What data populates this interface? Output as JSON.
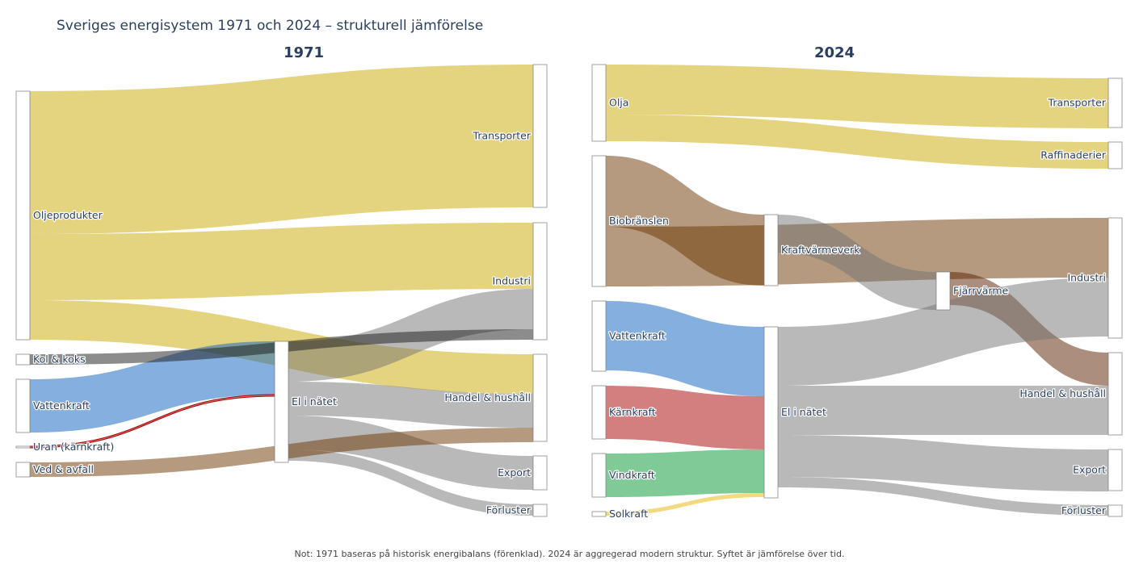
{
  "title": "Sveriges energisystem 1971 och 2024 – strukturell jämförelse",
  "note": "Not: 1971 baseras på historisk energibalans (förenklad). 2024 är aggregerad modern struktur. Syftet är jämförelse över tid.",
  "colors": {
    "oil": "#c9a800",
    "grey": "#737373",
    "dark_grey": "#1a1a1a",
    "blue": "#0a5fbf",
    "red": "#a80000",
    "green": "#00962d",
    "brown": "#6b3500",
    "dark_brown": "#5a1d00",
    "gold": "#e8b400"
  },
  "panels": [
    {
      "title": "1971",
      "nodes": [
        "Oljeprodukter",
        "Kol & koks",
        "Vattenkraft",
        "Uran (kärnkraft)",
        "Ved & avfall",
        "El i nätet",
        "Transporter",
        "Industri",
        "Handel & hushåll",
        "Export",
        "Förluster"
      ],
      "links": [
        {
          "source": 0,
          "target": 6,
          "value": 177,
          "color": "oil"
        },
        {
          "source": 0,
          "target": 7,
          "value": 82,
          "color": "oil"
        },
        {
          "source": 0,
          "target": 8,
          "value": 49,
          "color": "oil"
        },
        {
          "source": 2,
          "target": 5,
          "value": 66,
          "color": "blue"
        },
        {
          "source": 3,
          "target": 5,
          "value": 2,
          "color": "red"
        },
        {
          "source": 5,
          "target": 7,
          "value": 50,
          "color": "grey"
        },
        {
          "source": 5,
          "target": 8,
          "value": 42,
          "color": "grey"
        },
        {
          "source": 5,
          "target": 9,
          "value": 42,
          "color": "grey"
        },
        {
          "source": 5,
          "target": 10,
          "value": 14,
          "color": "grey"
        },
        {
          "source": 1,
          "target": 7,
          "value": 13,
          "color": "dark_grey"
        },
        {
          "source": 4,
          "target": 8,
          "value": 18,
          "color": "brown"
        }
      ]
    },
    {
      "title": "2024",
      "nodes": [
        "Olja",
        "Biobränslen",
        "Vattenkraft",
        "Kärnkraft",
        "Vindkraft",
        "Solkraft",
        "Kraftvärmeverk",
        "El i nätet",
        "Fjärrvärme",
        "Transporter",
        "Raffinaderier",
        "Industri",
        "Handel & hushåll",
        "Export",
        "Förluster"
      ],
      "links": [
        {
          "source": 0,
          "target": 9,
          "value": 62,
          "color": "oil"
        },
        {
          "source": 0,
          "target": 10,
          "value": 33,
          "color": "oil"
        },
        {
          "source": 1,
          "target": 6,
          "value": 88,
          "color": "brown"
        },
        {
          "source": 1,
          "target": 11,
          "value": 74,
          "color": "brown"
        },
        {
          "source": 6,
          "target": 8,
          "value": 47,
          "color": "grey"
        },
        {
          "source": 8,
          "target": 12,
          "value": 41,
          "color": "dark_brown"
        },
        {
          "source": 2,
          "target": 7,
          "value": 86,
          "color": "blue"
        },
        {
          "source": 3,
          "target": 7,
          "value": 66,
          "color": "red"
        },
        {
          "source": 4,
          "target": 7,
          "value": 54,
          "color": "green"
        },
        {
          "source": 5,
          "target": 7,
          "value": 5,
          "color": "gold"
        },
        {
          "source": 7,
          "target": 11,
          "value": 73,
          "color": "grey"
        },
        {
          "source": 7,
          "target": 12,
          "value": 61,
          "color": "grey"
        },
        {
          "source": 7,
          "target": 13,
          "value": 52,
          "color": "grey"
        },
        {
          "source": 7,
          "target": 14,
          "value": 13,
          "color": "grey"
        }
      ]
    }
  ]
}
